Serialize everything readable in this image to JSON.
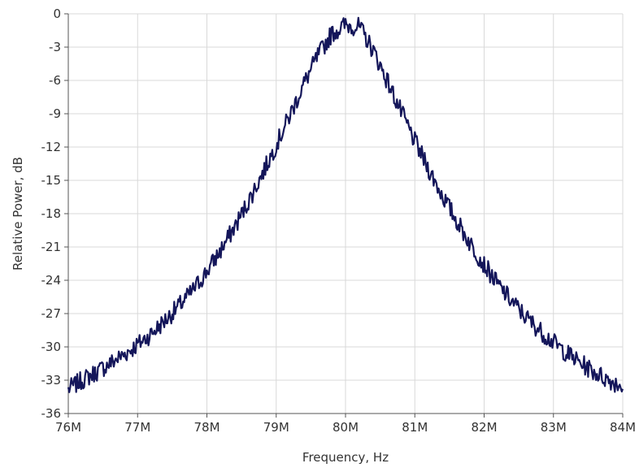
{
  "colors": {
    "background": "#ffffff",
    "grid": "#d9d9d9",
    "axis": "#555555",
    "series": "#14165a",
    "text": "#333333"
  },
  "chart_data": {
    "type": "line",
    "title": "",
    "xlabel": "Frequency, Hz",
    "ylabel": "Relative Power, dB",
    "xlim": [
      76000000,
      84000000
    ],
    "ylim": [
      -36,
      0
    ],
    "x_ticks": [
      76000000,
      77000000,
      78000000,
      79000000,
      80000000,
      81000000,
      82000000,
      83000000,
      84000000
    ],
    "x_tick_labels": [
      "76M",
      "77M",
      "78M",
      "79M",
      "80M",
      "81M",
      "82M",
      "83M",
      "84M"
    ],
    "y_ticks": [
      0,
      -3,
      -6,
      -9,
      -12,
      -15,
      -18,
      -21,
      -24,
      -27,
      -30,
      -33,
      -36
    ],
    "y_tick_labels": [
      "0",
      "-3",
      "-6",
      "-9",
      "-12",
      "-15",
      "-18",
      "-21",
      "-24",
      "-27",
      "-30",
      "-33",
      "-36"
    ],
    "grid": true,
    "legend": "none",
    "series": [
      {
        "x": [
          76000000,
          76200000,
          76400000,
          76600000,
          76800000,
          77000000,
          77200000,
          77400000,
          77600000,
          77800000,
          78000000,
          78200000,
          78400000,
          78600000,
          78800000,
          79000000,
          79200000,
          79400000,
          79600000,
          79800000,
          80000000,
          80200000,
          80400000,
          80600000,
          80800000,
          81000000,
          81200000,
          81400000,
          81600000,
          81800000,
          82000000,
          82200000,
          82400000,
          82600000,
          82800000,
          83000000,
          83200000,
          83400000,
          83600000,
          83800000,
          84000000
        ],
        "y": [
          -33.8,
          -33.0,
          -32.3,
          -31.5,
          -30.7,
          -29.8,
          -28.8,
          -27.6,
          -26.3,
          -24.9,
          -23.2,
          -21.3,
          -19.2,
          -16.9,
          -14.4,
          -11.8,
          -9.1,
          -6.3,
          -3.8,
          -1.8,
          -1.0,
          -1.2,
          -3.3,
          -6.0,
          -8.8,
          -11.5,
          -14.0,
          -16.4,
          -18.6,
          -20.7,
          -22.6,
          -24.4,
          -25.9,
          -27.3,
          -28.5,
          -29.6,
          -30.6,
          -31.5,
          -32.3,
          -33.0,
          -33.5
        ]
      }
    ]
  }
}
